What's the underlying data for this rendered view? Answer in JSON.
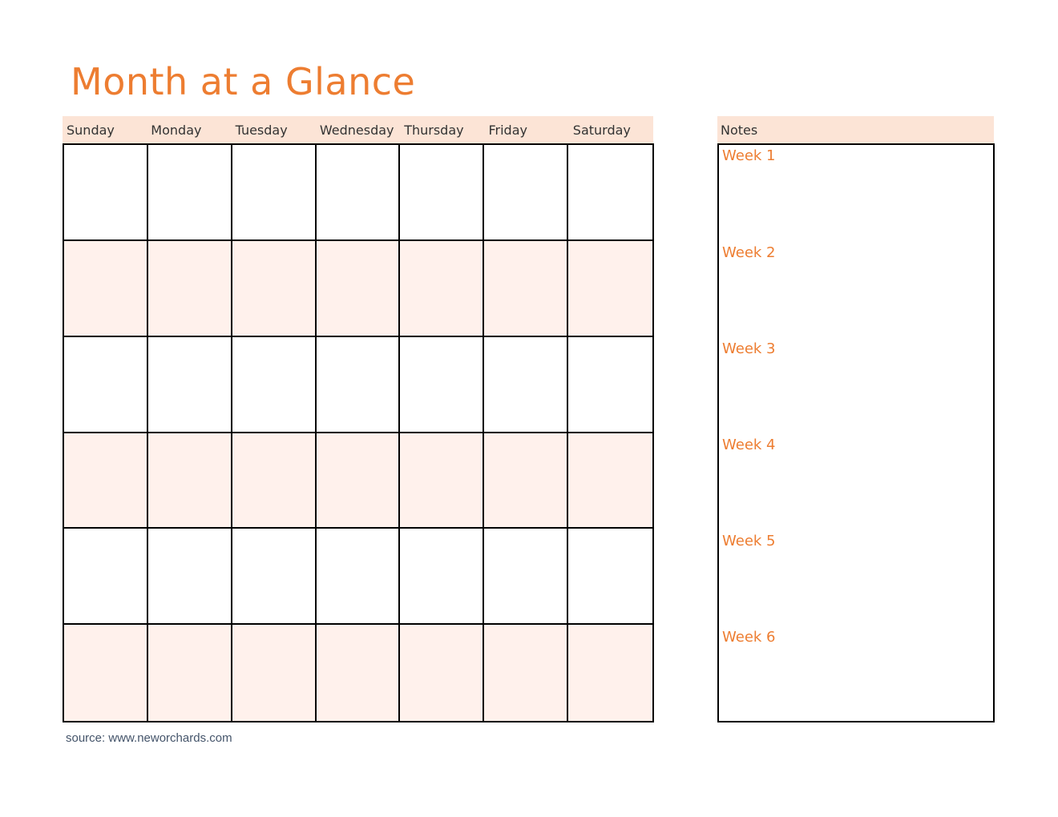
{
  "title": "Month at a Glance",
  "days": [
    "Sunday",
    "Monday",
    "Tuesday",
    "Wednesday",
    "Thursday",
    "Friday",
    "Saturday"
  ],
  "notes": {
    "header": "Notes",
    "weeks": [
      "Week 1",
      "Week 2",
      "Week 3",
      "Week 4",
      "Week 5",
      "Week 6"
    ]
  },
  "source": "source: www.neworchards.com",
  "colors": {
    "accent": "#ED7D31",
    "header_bg": "#FCE4D6",
    "shaded_row": "#FFF1EC",
    "border": "#000000"
  }
}
